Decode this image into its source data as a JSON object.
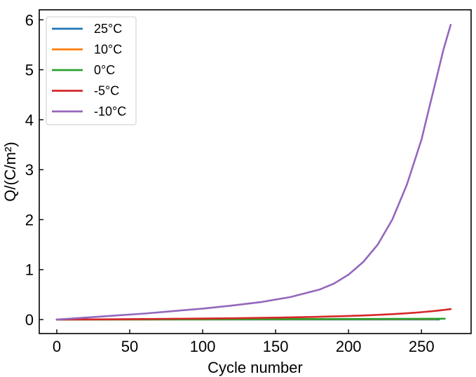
{
  "chart_data": {
    "type": "line",
    "title": "",
    "xlabel": "Cycle number",
    "ylabel": "Q/(C/m²)",
    "xlim": [
      -12,
      284
    ],
    "ylim": [
      -0.28,
      6.2
    ],
    "xticks": [
      0,
      50,
      100,
      150,
      200,
      250
    ],
    "yticks": [
      0,
      1,
      2,
      3,
      4,
      5,
      6
    ],
    "grid": false,
    "legend_position": "top-left",
    "series": [
      {
        "name": "25°C",
        "color": "#1f77b4",
        "x": [
          0,
          50,
          100,
          150,
          200,
          250,
          262
        ],
        "y": [
          0,
          0.0,
          0.0,
          0.0,
          0.0,
          0.0,
          0.0
        ]
      },
      {
        "name": "10°C",
        "color": "#ff7f0e",
        "x": [
          0,
          50,
          100,
          150,
          200,
          250,
          260
        ],
        "y": [
          0,
          0.002,
          0.004,
          0.006,
          0.008,
          0.01,
          0.01
        ]
      },
      {
        "name": "0°C",
        "color": "#2ca02c",
        "x": [
          0,
          50,
          100,
          150,
          200,
          250,
          266
        ],
        "y": [
          0,
          0.003,
          0.006,
          0.009,
          0.012,
          0.016,
          0.018
        ]
      },
      {
        "name": "-5°C",
        "color": "#d62728",
        "x": [
          0,
          25,
          50,
          75,
          100,
          125,
          150,
          175,
          200,
          215,
          230,
          240,
          250,
          260,
          270
        ],
        "y": [
          0,
          0.004,
          0.009,
          0.014,
          0.02,
          0.028,
          0.038,
          0.052,
          0.072,
          0.088,
          0.108,
          0.125,
          0.148,
          0.175,
          0.21
        ]
      },
      {
        "name": "-10°C",
        "color": "#9467bd",
        "x": [
          0,
          20,
          40,
          60,
          80,
          100,
          120,
          140,
          160,
          180,
          190,
          200,
          210,
          220,
          230,
          240,
          250,
          255,
          260,
          265,
          270
        ],
        "y": [
          0,
          0.04,
          0.08,
          0.12,
          0.17,
          0.22,
          0.28,
          0.35,
          0.45,
          0.6,
          0.72,
          0.9,
          1.15,
          1.5,
          2.0,
          2.7,
          3.6,
          4.2,
          4.8,
          5.4,
          5.9
        ]
      }
    ]
  }
}
